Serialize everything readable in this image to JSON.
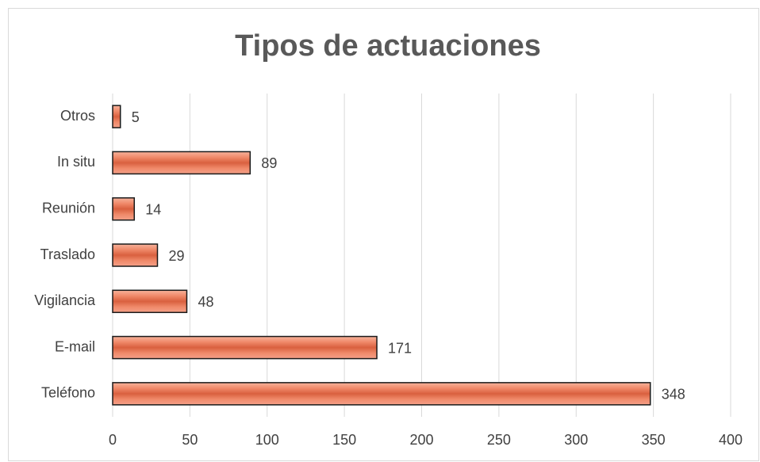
{
  "chart_data": {
    "type": "hbar",
    "title": "Tipos de actuaciones",
    "categories": [
      "Otros",
      "In situ",
      "Reunión",
      "Traslado",
      "Vigilancia",
      "E-mail",
      "Teléfono"
    ],
    "values": [
      5,
      89,
      14,
      29,
      48,
      171,
      348
    ],
    "color": "#e8694a",
    "xlim": [
      0,
      400
    ],
    "xticks": [
      0,
      50,
      100,
      150,
      200,
      250,
      300,
      350,
      400
    ],
    "grid": true
  }
}
